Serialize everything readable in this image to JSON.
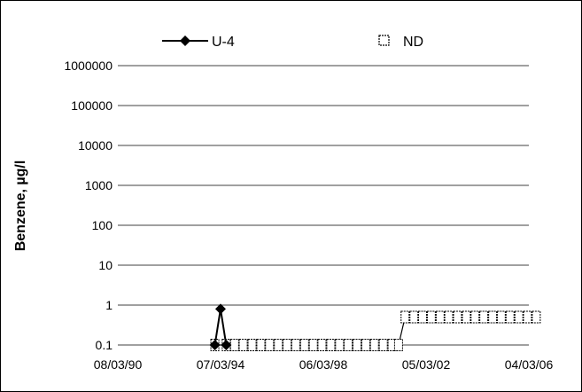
{
  "chart_data": {
    "type": "line",
    "ylabel": "Benzene, µg/l",
    "y_scale": "log",
    "ylim": [
      0.1,
      1000000
    ],
    "y_ticks": [
      "0.1",
      "1",
      "10",
      "100",
      "1000",
      "10000",
      "100000",
      "1000000"
    ],
    "x_ticks": [
      "08/03/90",
      "07/03/94",
      "06/03/98",
      "05/03/02",
      "04/03/06"
    ],
    "xlim": [
      "1990-08-03",
      "2006-04-03"
    ],
    "grid": "horizontal",
    "legend_position": "top",
    "series": [
      {
        "name": "U-4",
        "marker": "diamond",
        "color": "#000000",
        "points": [
          {
            "x": "1994-04-15",
            "y": 0.1
          },
          {
            "x": "1994-07-03",
            "y": 0.8
          },
          {
            "x": "1994-09-20",
            "y": 0.1
          }
        ]
      },
      {
        "name": "ND",
        "marker": "open-square",
        "color": "#000000",
        "points": [
          {
            "x": "1994-04-15",
            "y": 0.1
          },
          {
            "x": "1994-09-20",
            "y": 0.1
          },
          {
            "x": "1995-01-15",
            "y": 0.1
          },
          {
            "x": "1995-05-15",
            "y": 0.1
          },
          {
            "x": "1995-09-15",
            "y": 0.1
          },
          {
            "x": "1996-01-15",
            "y": 0.1
          },
          {
            "x": "1996-05-15",
            "y": 0.1
          },
          {
            "x": "1996-09-15",
            "y": 0.1
          },
          {
            "x": "1997-01-15",
            "y": 0.1
          },
          {
            "x": "1997-05-15",
            "y": 0.1
          },
          {
            "x": "1997-09-15",
            "y": 0.1
          },
          {
            "x": "1998-01-15",
            "y": 0.1
          },
          {
            "x": "1998-05-15",
            "y": 0.1
          },
          {
            "x": "1998-09-15",
            "y": 0.1
          },
          {
            "x": "1999-01-15",
            "y": 0.1
          },
          {
            "x": "1999-05-15",
            "y": 0.1
          },
          {
            "x": "1999-09-15",
            "y": 0.1
          },
          {
            "x": "2000-01-15",
            "y": 0.1
          },
          {
            "x": "2000-05-15",
            "y": 0.1
          },
          {
            "x": "2000-09-15",
            "y": 0.1
          },
          {
            "x": "2001-01-15",
            "y": 0.1
          },
          {
            "x": "2001-04-15",
            "y": 0.1
          },
          {
            "x": "2001-07-15",
            "y": 0.5
          },
          {
            "x": "2001-11-15",
            "y": 0.5
          },
          {
            "x": "2002-03-15",
            "y": 0.5
          },
          {
            "x": "2002-07-15",
            "y": 0.5
          },
          {
            "x": "2002-11-15",
            "y": 0.5
          },
          {
            "x": "2003-03-15",
            "y": 0.5
          },
          {
            "x": "2003-07-15",
            "y": 0.5
          },
          {
            "x": "2003-11-15",
            "y": 0.5
          },
          {
            "x": "2004-03-15",
            "y": 0.5
          },
          {
            "x": "2004-07-15",
            "y": 0.5
          },
          {
            "x": "2004-11-15",
            "y": 0.5
          },
          {
            "x": "2005-03-15",
            "y": 0.5
          },
          {
            "x": "2005-07-15",
            "y": 0.5
          },
          {
            "x": "2005-11-15",
            "y": 0.5
          },
          {
            "x": "2006-03-15",
            "y": 0.5
          },
          {
            "x": "2006-07-15",
            "y": 0.5
          }
        ]
      }
    ]
  }
}
